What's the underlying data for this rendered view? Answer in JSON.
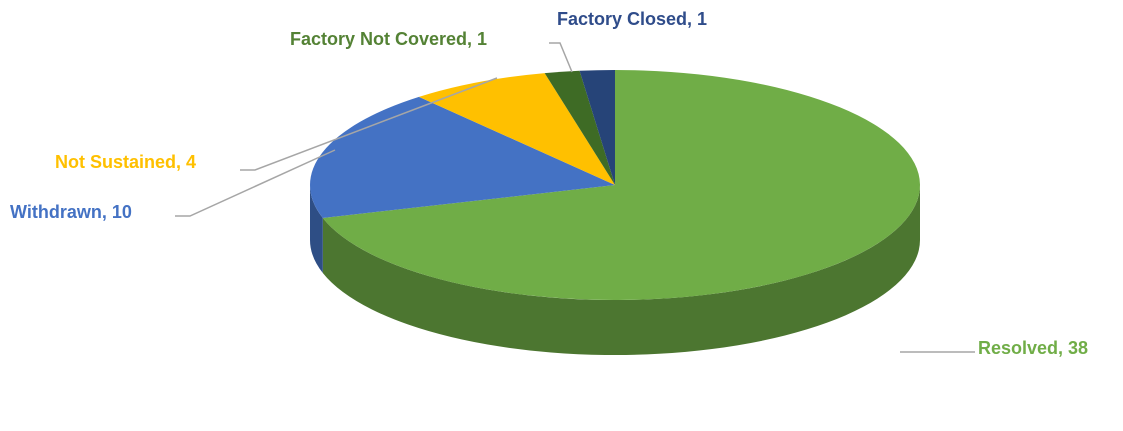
{
  "chart_data": {
    "type": "pie",
    "categories": [
      "Resolved",
      "Withdrawn",
      "Not Sustained",
      "Factory Not Covered",
      "Factory Closed"
    ],
    "values": [
      38,
      10,
      4,
      1,
      1
    ],
    "value_labels": [
      "Resolved, 38",
      "Withdrawn, 10",
      "Not Sustained, 4",
      "Factory Not Covered, 1",
      "Factory Closed, 1"
    ],
    "colors": [
      "#70ad47",
      "#4472c4",
      "#ffc000",
      "#3e6b25",
      "#264478"
    ]
  }
}
